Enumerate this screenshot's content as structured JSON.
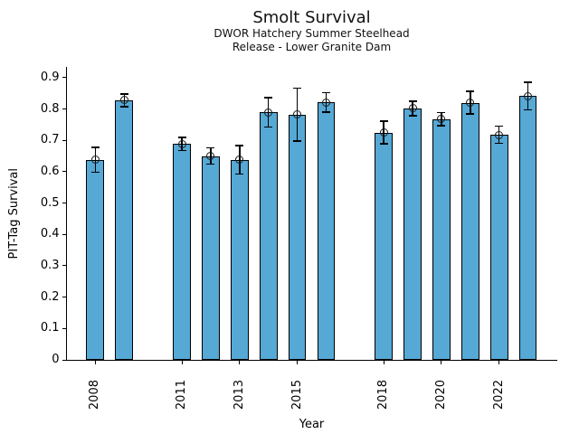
{
  "chart_data": {
    "type": "bar",
    "title": "Smolt Survival",
    "subtitle1": "DWOR Hatchery Summer Steelhead",
    "subtitle2": "Release - Lower Granite Dam",
    "xlabel": "Year",
    "ylabel": "PIT-Tag Survival",
    "xlim": [
      2007.0,
      2024.0
    ],
    "ylim": [
      0,
      0.9345
    ],
    "grid": false,
    "legend": false,
    "bar_width_years": 0.62,
    "error_bars": true,
    "marker": "open-circle",
    "colors": {
      "bar_fill": "#56a8d5",
      "bar_edge": "#000000",
      "error_bar": "#000000",
      "marker_edge": "#1a1a1a",
      "axis": "#000000",
      "text": "#000000",
      "background": "#ffffff"
    },
    "yticks": [
      0,
      0.1,
      0.2,
      0.3,
      0.4,
      0.5,
      0.6,
      0.7,
      0.8,
      0.9
    ],
    "ytick_labels": [
      "0",
      "0.1",
      "0.2",
      "0.3",
      "0.4",
      "0.5",
      "0.6",
      "0.7",
      "0.8",
      "0.9"
    ],
    "xticks": [
      2008,
      2011,
      2013,
      2015,
      2018,
      2020,
      2022
    ],
    "xtick_labels": [
      "2008",
      "2011",
      "2013",
      "2015",
      "2018",
      "2020",
      "2022"
    ],
    "missing_years": [
      2010,
      2017
    ],
    "series": [
      {
        "name": "PIT-Tag Survival",
        "points": [
          {
            "year": 2008,
            "value": 0.638,
            "error": 0.04
          },
          {
            "year": 2009,
            "value": 0.828,
            "error": 0.02
          },
          {
            "year": 2011,
            "value": 0.688,
            "error": 0.021
          },
          {
            "year": 2012,
            "value": 0.65,
            "error": 0.026
          },
          {
            "year": 2013,
            "value": 0.638,
            "error": 0.046
          },
          {
            "year": 2014,
            "value": 0.79,
            "error": 0.047
          },
          {
            "year": 2015,
            "value": 0.782,
            "error": 0.084
          },
          {
            "year": 2016,
            "value": 0.822,
            "error": 0.031
          },
          {
            "year": 2018,
            "value": 0.725,
            "error": 0.036
          },
          {
            "year": 2019,
            "value": 0.802,
            "error": 0.023
          },
          {
            "year": 2020,
            "value": 0.768,
            "error": 0.021
          },
          {
            "year": 2021,
            "value": 0.82,
            "error": 0.036
          },
          {
            "year": 2022,
            "value": 0.718,
            "error": 0.027
          },
          {
            "year": 2023,
            "value": 0.842,
            "error": 0.044
          }
        ]
      }
    ]
  }
}
